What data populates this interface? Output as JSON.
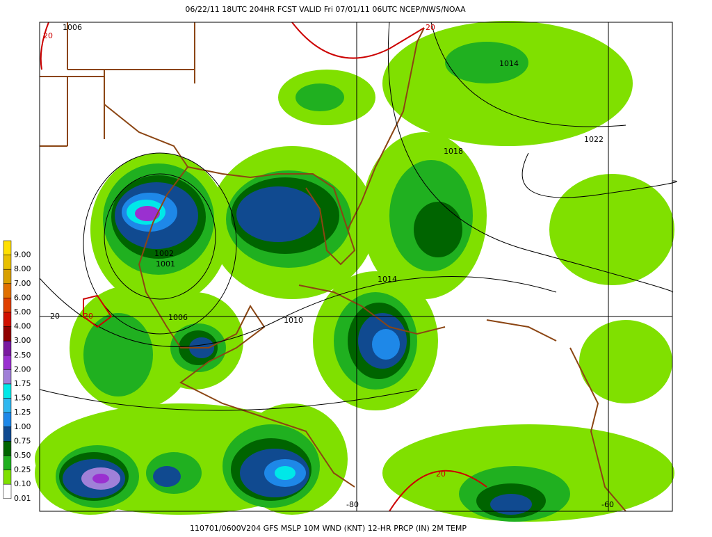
{
  "header": {
    "title": "06/22/11 18UTC  204HR  FCST VALID Fri 07/01/11 06UTC  NCEP/NWS/NOAA"
  },
  "footer": {
    "caption": "110701/0600V204 GFS MSLP 10M WND (KNT) 12-HR PRCP (IN) 2M TEMP"
  },
  "legend": {
    "items": [
      {
        "label": "9.00",
        "color": "#ffe000"
      },
      {
        "label": "8.00",
        "color": "#e8c000"
      },
      {
        "label": "7.00",
        "color": "#d8a000"
      },
      {
        "label": "6.00",
        "color": "#e07000"
      },
      {
        "label": "5.00",
        "color": "#e04000"
      },
      {
        "label": "4.00",
        "color": "#d01000"
      },
      {
        "label": "3.00",
        "color": "#900000"
      },
      {
        "label": "2.50",
        "color": "#7a1aa0"
      },
      {
        "label": "2.00",
        "color": "#9a30d0"
      },
      {
        "label": "1.75",
        "color": "#a080d8"
      },
      {
        "label": "1.50",
        "color": "#00e8e8"
      },
      {
        "label": "1.25",
        "color": "#30b8f0"
      },
      {
        "label": "1.00",
        "color": "#1e88e8"
      },
      {
        "label": "0.75",
        "color": "#104a90"
      },
      {
        "label": "0.50",
        "color": "#006400"
      },
      {
        "label": "0.25",
        "color": "#20b020"
      },
      {
        "label": "0.10",
        "color": "#80e000"
      },
      {
        "label": "0.01",
        "color": "#ffffff"
      }
    ]
  },
  "map": {
    "labels": [
      {
        "text": "1006",
        "color": "#000000"
      },
      {
        "text": "20",
        "color": "#cc0000"
      },
      {
        "text": "20",
        "color": "#cc0000"
      },
      {
        "text": "1014",
        "color": "#000000"
      },
      {
        "text": "1018",
        "color": "#000000"
      },
      {
        "text": "1022",
        "color": "#000000"
      },
      {
        "text": "1002",
        "color": "#000000"
      },
      {
        "text": "1001",
        "color": "#000000"
      },
      {
        "text": "1014",
        "color": "#000000"
      },
      {
        "text": "20",
        "color": "#000000"
      },
      {
        "text": "20",
        "color": "#cc0000"
      },
      {
        "text": "1006",
        "color": "#000000"
      },
      {
        "text": "1010",
        "color": "#000000"
      },
      {
        "text": "20",
        "color": "#cc0000"
      },
      {
        "text": "-80",
        "color": "#000000"
      },
      {
        "text": "-60",
        "color": "#000000"
      }
    ]
  }
}
